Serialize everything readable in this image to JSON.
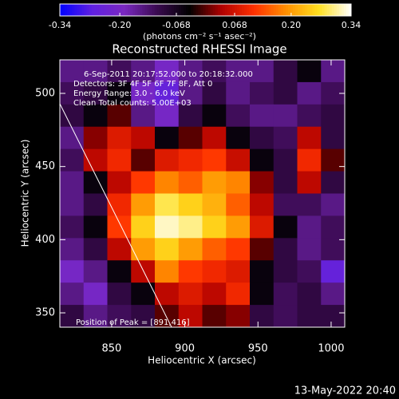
{
  "chart_data": {
    "type": "heatmap",
    "title": "Reconstructed RHESSI Image",
    "colorbar_label": "(photons cm⁻² s⁻¹ asec⁻²)",
    "colorbar_lim": [
      -0.34,
      0.34
    ],
    "colorbar_ticks": [
      -0.34,
      {
        "value": -0.2,
        "label": "-0.20"
      },
      -0.068,
      0.068,
      {
        "value": 0.2,
        "label": "0.20"
      },
      0.34
    ],
    "colormap": [
      "#0000ff",
      "#6020e0",
      "#7a28c0",
      "#3a0a50",
      "#000000",
      "#b00000",
      "#ff3000",
      "#ff9000",
      "#ffe020",
      "#ffffff"
    ],
    "x_label": "Heliocentric X (arcsec)",
    "y_label": "Heliocentric Y (arcsec)",
    "xlim": [
      814.6,
      1009.3
    ],
    "ylim": [
      340.2,
      522.9
    ],
    "xticks": [
      850,
      900,
      950,
      1000
    ],
    "yticks": [
      350,
      400,
      450,
      500
    ],
    "annotations": [
      "6-Sep-2011 20:17:52.000 to 20:18:32.000",
      "Detectors: 3F 4F 5F 6F 7F 8F, Att 0",
      "Energy Range: 3.0 - 6.0 keV",
      "Clean     Total counts: 5.00E+03"
    ],
    "peak_label": "Position of Peak = [891,416]",
    "footer": "13-May-2022 20:40",
    "z": [
      [
        -0.15,
        -0.15,
        -0.12,
        -0.15,
        -0.2,
        -0.15,
        -0.12,
        -0.15,
        -0.15,
        -0.1,
        -0.05,
        -0.15
      ],
      [
        -0.12,
        -0.1,
        -0.05,
        -0.2,
        -0.25,
        -0.15,
        -0.1,
        -0.15,
        -0.12,
        -0.1,
        -0.15,
        -0.12
      ],
      [
        -0.1,
        -0.05,
        0.0,
        -0.15,
        -0.2,
        -0.1,
        -0.05,
        -0.12,
        -0.15,
        -0.15,
        -0.12,
        -0.1
      ],
      [
        -0.15,
        0.02,
        0.08,
        0.05,
        -0.05,
        0.0,
        0.05,
        -0.05,
        -0.1,
        -0.12,
        0.05,
        -0.1
      ],
      [
        -0.12,
        0.05,
        0.1,
        0.0,
        0.08,
        0.1,
        0.12,
        0.06,
        -0.05,
        -0.1,
        0.1,
        0.0
      ],
      [
        -0.15,
        -0.05,
        0.05,
        0.12,
        0.18,
        0.15,
        0.2,
        0.18,
        0.02,
        -0.1,
        0.05,
        -0.1
      ],
      [
        -0.15,
        -0.1,
        0.1,
        0.2,
        0.28,
        0.25,
        0.22,
        0.15,
        0.05,
        -0.12,
        -0.12,
        -0.15
      ],
      [
        -0.12,
        -0.05,
        0.12,
        0.25,
        0.32,
        0.3,
        0.25,
        0.2,
        0.08,
        -0.05,
        -0.15,
        -0.12
      ],
      [
        -0.15,
        -0.1,
        0.05,
        0.2,
        0.25,
        0.2,
        0.15,
        0.12,
        0.0,
        -0.1,
        -0.15,
        -0.12
      ],
      [
        -0.2,
        -0.15,
        -0.05,
        0.05,
        0.18,
        0.12,
        0.1,
        0.08,
        -0.05,
        -0.1,
        -0.12,
        -0.25
      ],
      [
        -0.15,
        -0.2,
        -0.1,
        -0.05,
        0.05,
        0.08,
        0.05,
        0.1,
        -0.05,
        -0.12,
        -0.1,
        -0.15
      ],
      [
        -0.1,
        -0.15,
        -0.12,
        -0.1,
        0.0,
        0.05,
        0.0,
        0.02,
        -0.1,
        -0.12,
        -0.1,
        -0.1
      ]
    ]
  }
}
